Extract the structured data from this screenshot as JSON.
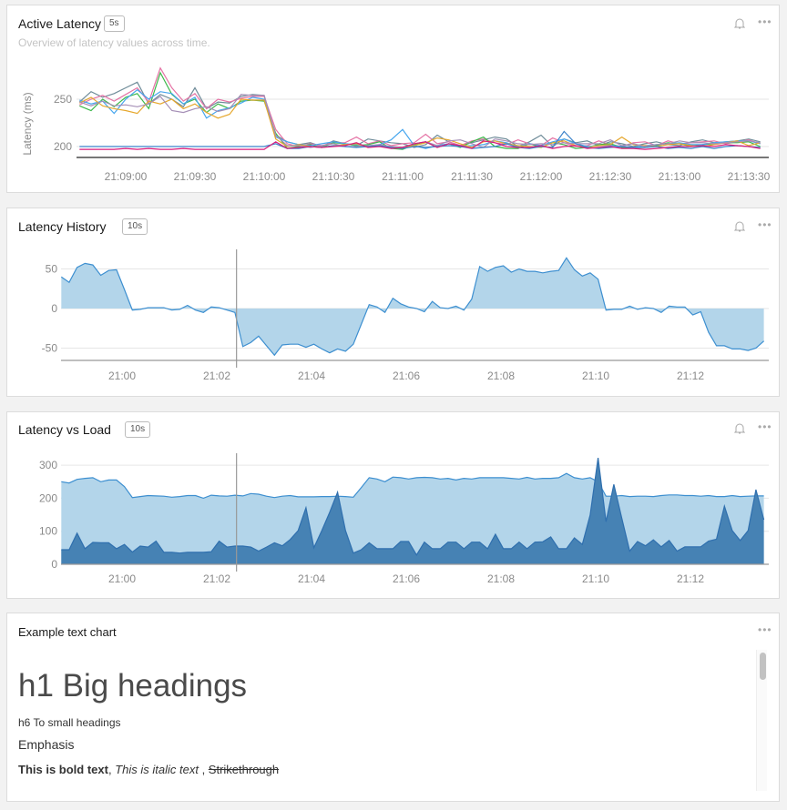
{
  "panels": [
    {
      "badge": "5s",
      "subtitle": "Overview of latency values across time.",
      "menu": "•••"
    },
    {
      "badge": "10s",
      "menu": "•••"
    },
    {
      "badge": "10s",
      "menu": "•••"
    }
  ],
  "text_panel": {
    "title": "Example text chart",
    "h1": "h1 Big headings",
    "h6": "h6 To small headings",
    "emphasis": "Emphasis",
    "bold": "This is bold text",
    "sep1": ", ",
    "italic": "This is italic text",
    "sep2": " , ",
    "strike": "Strikethrough",
    "menu": "•••"
  },
  "chart_data": [
    {
      "type": "line",
      "title": "Active Latency",
      "subtitle": "Overview of latency values across time.",
      "ylabel": "Latency (ms)",
      "y_ticks": [
        250,
        200
      ],
      "x_ticks": [
        "21:09:00",
        "21:09:30",
        "21:10:00",
        "21:10:30",
        "21:11:00",
        "21:11:30",
        "21:12:00",
        "21:12:30",
        "21:13:00",
        "21:13:30"
      ],
      "grid": true,
      "start": "21:08:40",
      "interval_s": 5,
      "series": [
        {
          "color": "#6f8c99",
          "values": [
            247,
            258,
            252,
            256,
            262,
            268,
            245,
            255,
            250,
            242,
            262,
            240,
            247,
            246,
            253,
            255,
            254,
            212,
            205,
            202,
            204,
            200,
            206,
            203,
            201,
            208,
            206,
            204,
            203,
            199,
            202,
            212,
            205,
            201,
            204,
            207,
            210,
            208,
            200,
            205,
            212,
            200,
            208,
            204,
            206,
            201,
            205,
            203,
            200,
            203,
            205,
            202,
            201,
            205,
            207,
            204,
            205,
            206,
            208,
            205
          ]
        },
        {
          "color": "#e573a5",
          "values": [
            244,
            250,
            254,
            248,
            255,
            262,
            247,
            283,
            262,
            248,
            256,
            240,
            250,
            247,
            251,
            253,
            253,
            218,
            203,
            200,
            203,
            201,
            204,
            204,
            210,
            203,
            206,
            201,
            203,
            204,
            213,
            203,
            205,
            201,
            206,
            208,
            204,
            202,
            207,
            203,
            201,
            209,
            204,
            200,
            201,
            206,
            202,
            200,
            204,
            205,
            201,
            206,
            203,
            204,
            205,
            206,
            203,
            205,
            207,
            203
          ]
        },
        {
          "color": "#3cb84a",
          "values": [
            243,
            238,
            250,
            242,
            252,
            256,
            240,
            278,
            255,
            245,
            250,
            236,
            245,
            240,
            248,
            249,
            248,
            214,
            198,
            200,
            202,
            199,
            204,
            203,
            201,
            202,
            205,
            198,
            197,
            202,
            205,
            199,
            203,
            199,
            205,
            210,
            200,
            198,
            198,
            203,
            199,
            204,
            202,
            198,
            199,
            202,
            203,
            199,
            199,
            199,
            201,
            204,
            203,
            200,
            202,
            203,
            204,
            204,
            205,
            200
          ]
        },
        {
          "color": "#46a6ee",
          "values": [
            249,
            245,
            248,
            235,
            250,
            260,
            250,
            258,
            256,
            245,
            252,
            230,
            238,
            241,
            246,
            252,
            250,
            210,
            205,
            202,
            201,
            203,
            205,
            203,
            202,
            200,
            202,
            207,
            218,
            201,
            198,
            201,
            203,
            200,
            201,
            202,
            206,
            204,
            200,
            203,
            201,
            205,
            208,
            203,
            200,
            201,
            201,
            200,
            199,
            201,
            202,
            203,
            204,
            202,
            202,
            204,
            205,
            206,
            206,
            203
          ]
        },
        {
          "color": "#e6a82e",
          "values": [
            246,
            252,
            243,
            240,
            238,
            235,
            248,
            245,
            250,
            240,
            245,
            236,
            230,
            234,
            250,
            249,
            249,
            208,
            200,
            202,
            200,
            199,
            201,
            202,
            203,
            199,
            201,
            200,
            199,
            201,
            204,
            209,
            207,
            203,
            199,
            205,
            206,
            203,
            201,
            200,
            199,
            204,
            206,
            201,
            199,
            201,
            202,
            210,
            202,
            201,
            200,
            202,
            203,
            201,
            200,
            202,
            204,
            206,
            201,
            204
          ]
        },
        {
          "color": "#a58fb6",
          "values": [
            247,
            243,
            248,
            243,
            244,
            242,
            245,
            253,
            238,
            236,
            240,
            242,
            237,
            240,
            255,
            254,
            254,
            212,
            201,
            201,
            199,
            201,
            203,
            200,
            200,
            201,
            202,
            200,
            199,
            203,
            205,
            201,
            206,
            207,
            203,
            199,
            208,
            206,
            203,
            202,
            203,
            202,
            204,
            203,
            203,
            203,
            207,
            201,
            203,
            200,
            202,
            203,
            206,
            204,
            204,
            203,
            204,
            205,
            206,
            204
          ]
        },
        {
          "color": "#3b82c9",
          "values": [
            200,
            200,
            200,
            200,
            200,
            200,
            200,
            200,
            200,
            200,
            200,
            200,
            200,
            200,
            200,
            200,
            200,
            203,
            198,
            198,
            200,
            199,
            201,
            200,
            199,
            200,
            201,
            199,
            198,
            200,
            199,
            200,
            201,
            200,
            198,
            199,
            200,
            203,
            199,
            198,
            200,
            199,
            216,
            203,
            199,
            198,
            199,
            200,
            199,
            199,
            200,
            198,
            199,
            198,
            200,
            198,
            200,
            201,
            200,
            199
          ]
        },
        {
          "color": "#d81b7c",
          "values": [
            197,
            197,
            197,
            197,
            198,
            197,
            198,
            197,
            197,
            198,
            197,
            197,
            197,
            197,
            197,
            197,
            197,
            205,
            198,
            199,
            200,
            199,
            200,
            201,
            204,
            199,
            200,
            198,
            199,
            203,
            205,
            199,
            203,
            201,
            198,
            206,
            204,
            200,
            199,
            199,
            201,
            198,
            200,
            201,
            198,
            199,
            200,
            198,
            198,
            197,
            198,
            199,
            200,
            200,
            201,
            200,
            202,
            201,
            200,
            198
          ]
        }
      ]
    },
    {
      "type": "area",
      "title": "Latency History",
      "y_ticks": [
        50,
        0,
        -50
      ],
      "x_ticks": [
        "21:00",
        "21:02",
        "21:04",
        "21:06",
        "21:08",
        "21:10",
        "21:12"
      ],
      "grid": true,
      "start": "20:58:43",
      "interval_s": 10,
      "marker": "21:02:25",
      "series": [
        {
          "color": "#3d8fd0",
          "fill": "#b3d5ea",
          "values": [
            40,
            33,
            52,
            57,
            55,
            42,
            48,
            49,
            24,
            -2,
            -1,
            1,
            1,
            1,
            -2,
            -1,
            4,
            -2,
            -5,
            2,
            1,
            -2,
            -5,
            -48,
            -43,
            -35,
            -47,
            -59,
            -46,
            -45,
            -45,
            -49,
            -45,
            -51,
            -56,
            -51,
            -54,
            -45,
            -20,
            5,
            2,
            -5,
            13,
            6,
            2,
            0,
            -4,
            9,
            1,
            0,
            3,
            -2,
            12,
            53,
            47,
            52,
            54,
            46,
            50,
            47,
            47,
            45,
            47,
            48,
            64,
            49,
            41,
            45,
            37,
            -2,
            -1,
            -1,
            3,
            -1,
            1,
            0,
            -5,
            3,
            2,
            2,
            -8,
            -4,
            -30,
            -47,
            -47,
            -51,
            -51,
            -53,
            -50,
            -41
          ]
        }
      ]
    },
    {
      "type": "area",
      "title": "Latency vs Load",
      "y_ticks": [
        300,
        200,
        100,
        0
      ],
      "x_ticks": [
        "21:00",
        "21:02",
        "21:04",
        "21:06",
        "21:08",
        "21:10",
        "21:12"
      ],
      "grid": true,
      "start": "20:58:43",
      "interval_s": 10,
      "marker": "21:02:25",
      "series": [
        {
          "color": "#3d8fd0",
          "fill": "#b3d5ea",
          "values": [
            250,
            246,
            257,
            260,
            262,
            250,
            255,
            255,
            235,
            202,
            205,
            208,
            207,
            206,
            203,
            205,
            208,
            208,
            200,
            209,
            207,
            206,
            209,
            207,
            214,
            212,
            206,
            202,
            206,
            208,
            204,
            204,
            204,
            205,
            205,
            206,
            205,
            203,
            232,
            262,
            258,
            250,
            264,
            262,
            258,
            262,
            263,
            262,
            258,
            260,
            255,
            260,
            258,
            262,
            262,
            262,
            262,
            260,
            258,
            263,
            258,
            260,
            260,
            262,
            275,
            262,
            258,
            262,
            250,
            206,
            206,
            208,
            205,
            206,
            206,
            205,
            208,
            210,
            210,
            208,
            208,
            206,
            208,
            205,
            205,
            208,
            205,
            206,
            207,
            207
          ]
        },
        {
          "color": "#2f6fae",
          "fill": "#4682b4",
          "values": [
            44,
            44,
            94,
            47,
            66,
            65,
            65,
            47,
            60,
            37,
            55,
            52,
            70,
            36,
            36,
            34,
            36,
            36,
            36,
            38,
            70,
            52,
            55,
            55,
            52,
            40,
            52,
            65,
            56,
            75,
            102,
            171,
            50,
            102,
            157,
            218,
            102,
            34,
            44,
            65,
            47,
            47,
            47,
            69,
            69,
            28,
            67,
            47,
            47,
            67,
            67,
            47,
            67,
            67,
            47,
            91,
            47,
            47,
            67,
            47,
            67,
            68,
            83,
            47,
            47,
            80,
            60,
            149,
            322,
            129,
            242,
            140,
            40,
            69,
            56,
            74,
            53,
            72,
            40,
            53,
            53,
            53,
            70,
            76,
            176,
            102,
            72,
            102,
            226,
            135
          ]
        }
      ]
    }
  ]
}
